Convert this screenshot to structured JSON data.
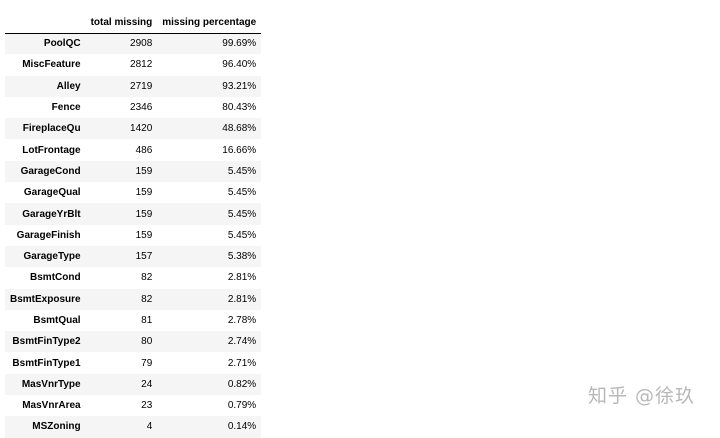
{
  "table": {
    "columns": [
      "total missing",
      "missing percentage"
    ],
    "rows": [
      [
        "PoolQC",
        2908,
        "99.69%"
      ],
      [
        "MiscFeature",
        2812,
        "96.40%"
      ],
      [
        "Alley",
        2719,
        "93.21%"
      ],
      [
        "Fence",
        2346,
        "80.43%"
      ],
      [
        "FireplaceQu",
        1420,
        "48.68%"
      ],
      [
        "LotFrontage",
        486,
        "16.66%"
      ],
      [
        "GarageCond",
        159,
        "5.45%"
      ],
      [
        "GarageQual",
        159,
        "5.45%"
      ],
      [
        "GarageYrBlt",
        159,
        "5.45%"
      ],
      [
        "GarageFinish",
        159,
        "5.45%"
      ],
      [
        "GarageType",
        157,
        "5.38%"
      ],
      [
        "BsmtCond",
        82,
        "2.81%"
      ],
      [
        "BsmtExposure",
        82,
        "2.81%"
      ],
      [
        "BsmtQual",
        81,
        "2.78%"
      ],
      [
        "BsmtFinType2",
        80,
        "2.74%"
      ],
      [
        "BsmtFinType1",
        79,
        "2.71%"
      ],
      [
        "MasVnrType",
        24,
        "0.82%"
      ],
      [
        "MasVnrArea",
        23,
        "0.79%"
      ],
      [
        "MSZoning",
        4,
        "0.14%"
      ]
    ]
  },
  "watermark": "知乎 @徐玖"
}
